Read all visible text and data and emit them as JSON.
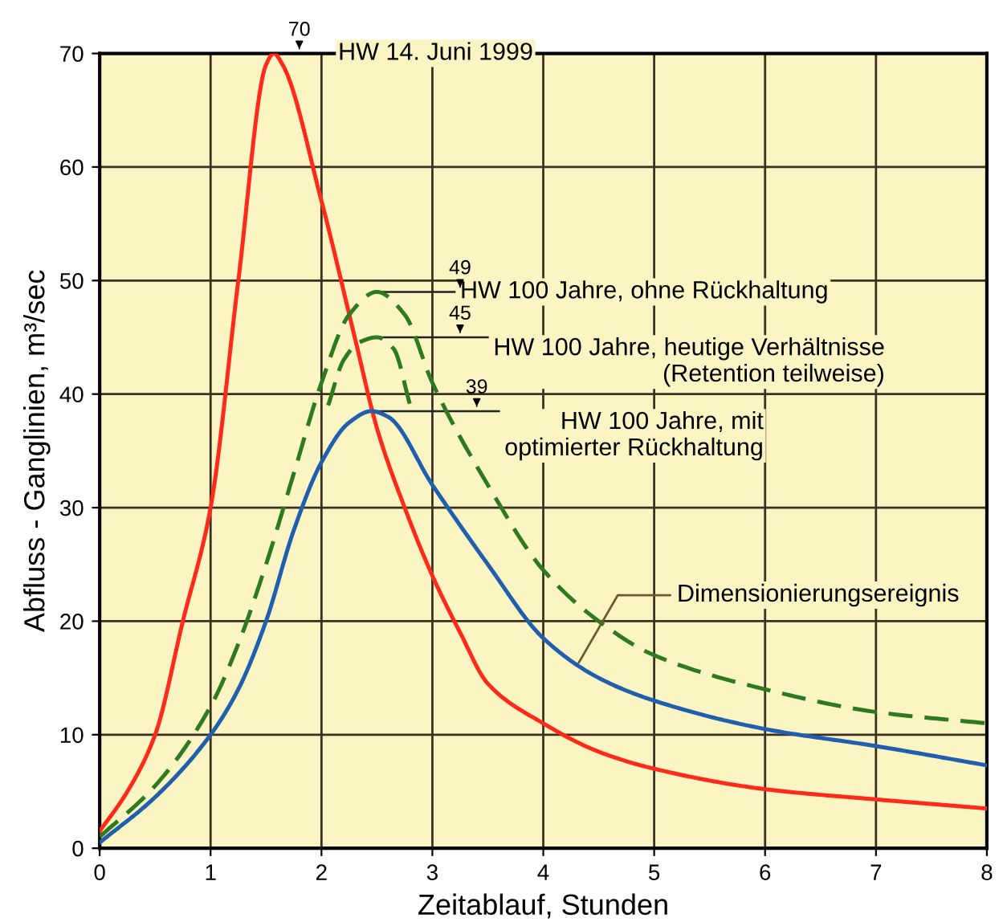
{
  "chart_data": {
    "type": "line",
    "xlabel": "Zeitablauf, Stunden",
    "ylabel": "Abfluss - Ganglinien, m³/sec",
    "xlim": [
      0,
      8
    ],
    "ylim": [
      0,
      70
    ],
    "xticks": [
      0,
      1,
      2,
      3,
      4,
      5,
      6,
      7,
      8
    ],
    "yticks": [
      0,
      10,
      20,
      30,
      40,
      50,
      60,
      70
    ],
    "grid": true,
    "legend": false,
    "marker": "none",
    "series": [
      {
        "name": "HW 14. Juni 1999",
        "color": "#ff2a1a",
        "line_style": "solid",
        "x": [
          0,
          0.25,
          0.5,
          0.75,
          1,
          1.25,
          1.5,
          1.57,
          1.65,
          2,
          2.3,
          2.5,
          2.75,
          3,
          3.25,
          3.5,
          4,
          4.5,
          5,
          6,
          7,
          8
        ],
        "values": [
          1.5,
          5,
          10,
          20,
          30,
          50,
          69,
          70,
          69,
          57,
          45,
          37,
          30,
          24,
          19,
          14.5,
          11,
          8.5,
          7,
          5.2,
          4.3,
          3.5
        ]
      },
      {
        "name": "HW 100 Jahre, ohne Rückhaltung",
        "color": "#2e7a1e",
        "line_style": "dashed",
        "x": [
          0,
          0.5,
          1,
          1.25,
          1.5,
          1.75,
          2,
          2.25,
          2.5,
          2.75,
          3,
          3.5,
          4,
          4.5,
          5,
          6,
          7,
          8
        ],
        "values": [
          1,
          5.5,
          12.5,
          18,
          25,
          33,
          41,
          47,
          49,
          47,
          41,
          32,
          24.5,
          20,
          17,
          14,
          12,
          11
        ]
      },
      {
        "name": "HW 100 Jahre, heutige Verhältnisse\n(Retention teilweise)",
        "color": "#2e7a1e",
        "line_style": "dashed",
        "x": [
          2.06,
          2.2,
          2.35,
          2.5,
          2.65,
          2.8
        ],
        "values": [
          39,
          43,
          44.6,
          45,
          44,
          39
        ]
      },
      {
        "name": "HW 100 Jahre, mit\noptimierter Rückhaltung",
        "color": "#1f5fae",
        "line_style": "solid",
        "x": [
          0,
          0.5,
          1,
          1.25,
          1.5,
          1.75,
          2,
          2.25,
          2.45,
          2.6,
          3,
          3.5,
          4,
          4.5,
          5,
          6,
          7,
          8
        ],
        "values": [
          0.5,
          4.5,
          10,
          14,
          20,
          28,
          34,
          37.5,
          38.5,
          38,
          32,
          25,
          18.5,
          15,
          13,
          10.5,
          9,
          7.3
        ]
      }
    ],
    "annotations": [
      {
        "text": "70",
        "x": 1.57,
        "y": 70
      },
      {
        "text": "49",
        "x": 2.5,
        "y": 49
      },
      {
        "text": "45",
        "x": 2.5,
        "y": 45
      },
      {
        "text": "39",
        "x": 2.45,
        "y": 38.5
      },
      {
        "text": "Dimensionierungsereignis",
        "x": 4.3,
        "y": 16
      }
    ]
  }
}
